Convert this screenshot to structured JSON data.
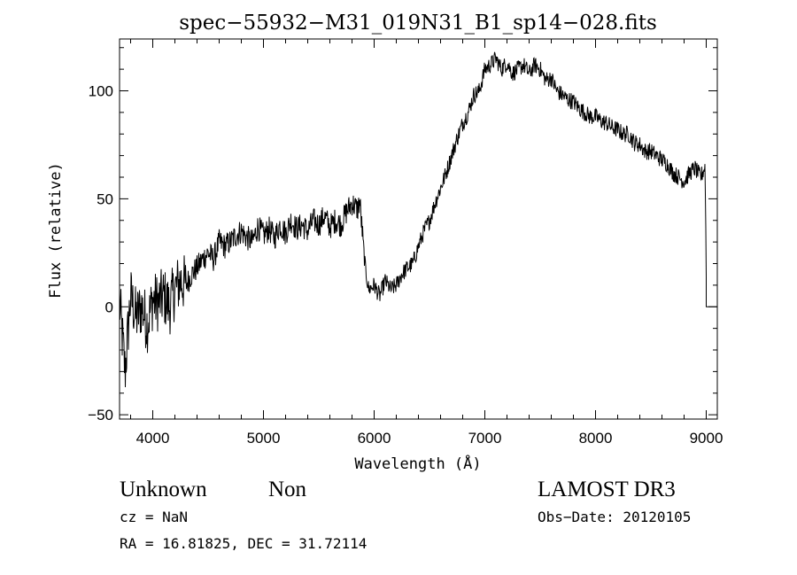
{
  "chart_data": {
    "type": "line",
    "title": "spec−55932−M31_019N31_B1_sp14−028.fits",
    "xlabel": "Wavelength (Å)",
    "ylabel": "Flux (relative)",
    "xlim": [
      3700,
      9100
    ],
    "ylim": [
      -52,
      124
    ],
    "x_ticks": [
      4000,
      5000,
      6000,
      7000,
      8000,
      9000
    ],
    "x_tick_labels": [
      "4000",
      "5000",
      "6000",
      "7000",
      "8000",
      "9000"
    ],
    "y_ticks": [
      -50,
      0,
      50,
      100
    ],
    "y_tick_labels": [
      "−50",
      "0",
      "50",
      "100"
    ],
    "grid": false,
    "line_color": "#000000",
    "series": [
      {
        "x": [
          3700,
          3750,
          3800,
          3850,
          3900,
          3950,
          4000,
          4050,
          4100,
          4150,
          4200,
          4250,
          4300,
          4350,
          4400,
          4450,
          4500,
          4550,
          4600,
          4650,
          4700,
          4750,
          4800,
          4850,
          4900,
          4950,
          5000,
          5050,
          5100,
          5150,
          5200,
          5250,
          5300,
          5350,
          5400,
          5450,
          5500,
          5550,
          5600,
          5650,
          5700,
          5750,
          5800,
          5850,
          5870,
          5900,
          5920,
          5950,
          6000,
          6050,
          6100,
          6150,
          6200,
          6250,
          6300,
          6350,
          6400,
          6450,
          6500,
          6550,
          6600,
          6650,
          6700,
          6750,
          6800,
          6850,
          6900,
          6950,
          7000,
          7050,
          7100,
          7150,
          7200,
          7250,
          7300,
          7350,
          7400,
          7450,
          7500,
          7550,
          7600,
          7650,
          7700,
          7750,
          7800,
          7850,
          7900,
          7950,
          8000,
          8050,
          8100,
          8150,
          8200,
          8250,
          8300,
          8350,
          8400,
          8450,
          8500,
          8550,
          8600,
          8650,
          8700,
          8750,
          8800,
          8850,
          8900,
          8950,
          8990,
          9000
        ],
        "y": [
          2,
          -30,
          5,
          -5,
          0,
          -8,
          3,
          2,
          5,
          0,
          8,
          12,
          10,
          15,
          18,
          22,
          25,
          22,
          30,
          28,
          30,
          33,
          35,
          32,
          30,
          37,
          33,
          36,
          32,
          38,
          34,
          40,
          36,
          38,
          35,
          40,
          38,
          42,
          37,
          40,
          38,
          44,
          48,
          45,
          49,
          30,
          18,
          8,
          10,
          5,
          12,
          8,
          10,
          15,
          18,
          20,
          28,
          35,
          40,
          48,
          55,
          62,
          70,
          78,
          85,
          90,
          98,
          100,
          110,
          112,
          115,
          110,
          113,
          108,
          110,
          112,
          108,
          112,
          110,
          105,
          106,
          100,
          98,
          96,
          95,
          92,
          90,
          88,
          88,
          86,
          85,
          83,
          82,
          80,
          80,
          76,
          75,
          72,
          72,
          70,
          68,
          66,
          62,
          60,
          58,
          62,
          64,
          60,
          65,
          15
        ]
      }
    ]
  },
  "info": {
    "class_label": "Unknown",
    "subclass_label": "Non",
    "survey": "LAMOST DR3",
    "redshift": "cz = NaN",
    "obs_date": "Obs−Date: 20120105",
    "coords": "RA =  16.81825, DEC =  31.72114"
  }
}
